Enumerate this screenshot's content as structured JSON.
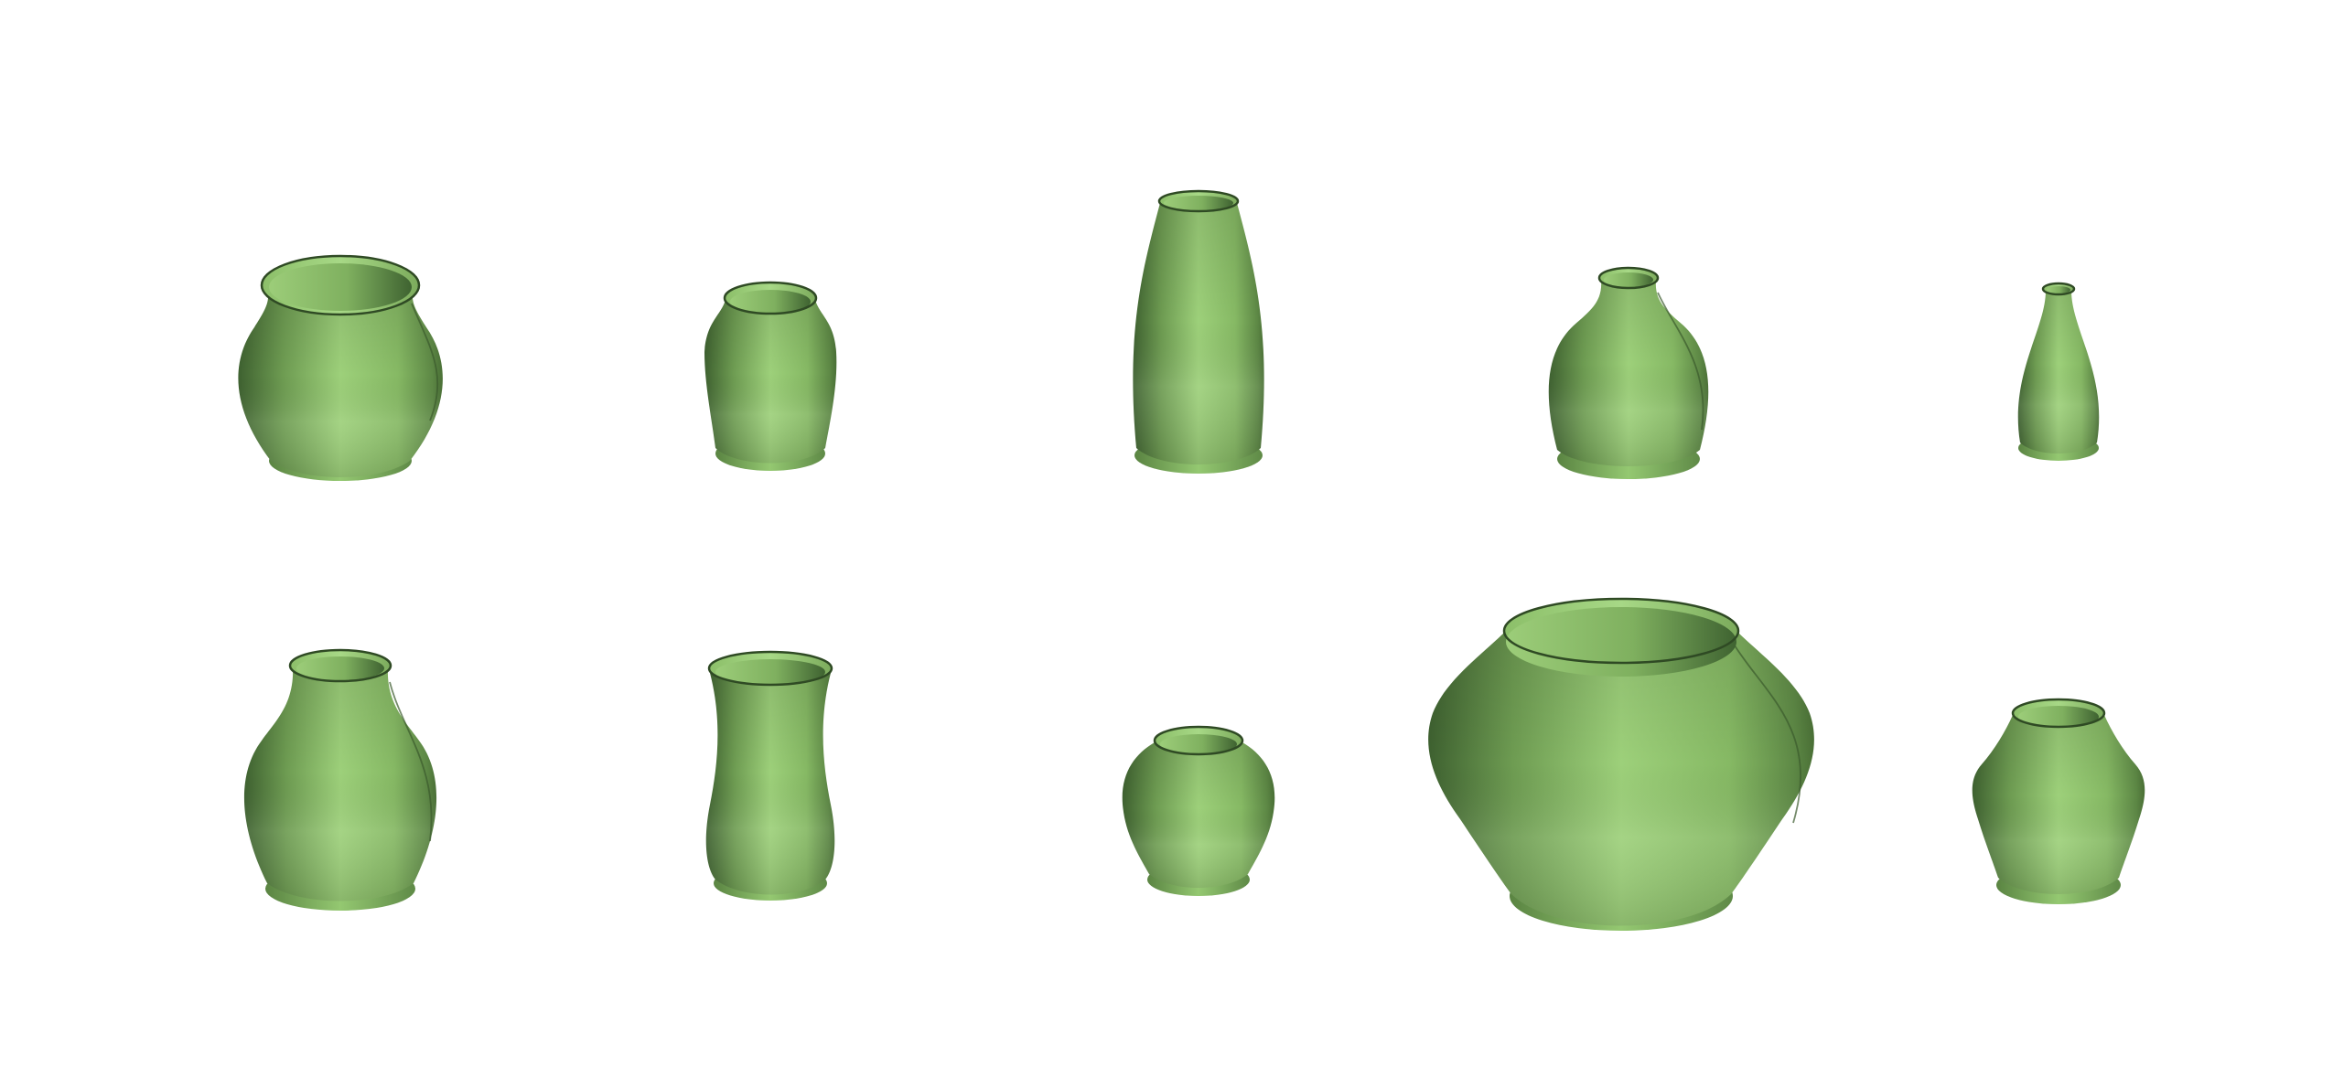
{
  "scene": {
    "background_color": "#ffffff",
    "vase_base_color": "#8fc46a",
    "vase_highlight_color": "#a6d884",
    "vase_shadow_color": "#4f7a3a",
    "vase_dark_color": "#3b5e2b",
    "rim_inner_color": "#6f9d52"
  },
  "vases": [
    {
      "id": "vase-1",
      "row": 1,
      "column": 1,
      "style": "wide round pot"
    },
    {
      "id": "vase-2",
      "row": 1,
      "column": 2,
      "style": "small tapered jar"
    },
    {
      "id": "vase-3",
      "row": 1,
      "column": 3,
      "style": "tall barrel vase"
    },
    {
      "id": "vase-4",
      "row": 1,
      "column": 4,
      "style": "narrow-neck bulb vase"
    },
    {
      "id": "vase-5",
      "row": 1,
      "column": 5,
      "style": "slim bud vase"
    },
    {
      "id": "vase-6",
      "row": 2,
      "column": 1,
      "style": "shouldered vase"
    },
    {
      "id": "vase-7",
      "row": 2,
      "column": 2,
      "style": "waisted cylinder"
    },
    {
      "id": "vase-8",
      "row": 2,
      "column": 3,
      "style": "small round jar"
    },
    {
      "id": "vase-9",
      "row": 2,
      "column": 4,
      "style": "large wide bowl vase"
    },
    {
      "id": "vase-10",
      "row": 2,
      "column": 5,
      "style": "flared short vase"
    }
  ]
}
